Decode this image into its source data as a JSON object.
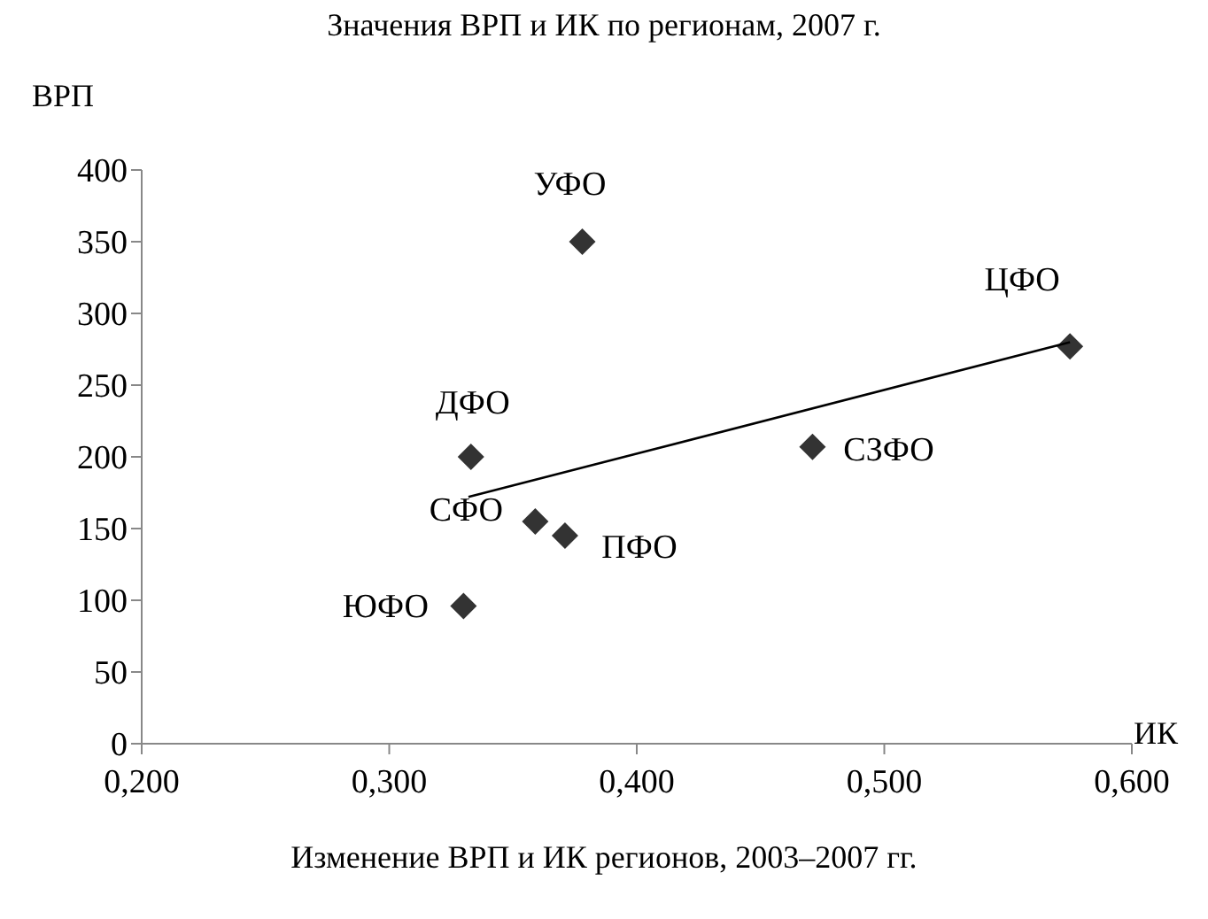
{
  "chart_data": {
    "type": "scatter",
    "title": "Значения ВРП и ИК по регионам, 2007 г.",
    "xlabel": "ИК",
    "ylabel": "ВРП",
    "annotations": [
      {
        "text": "УФО",
        "x": 0.378,
        "y": 350
      },
      {
        "text": "ЦФО",
        "x": 0.575,
        "y": 277
      },
      {
        "text": "СЗФО",
        "x": 0.471,
        "y": 207
      },
      {
        "text": "ДФО",
        "x": 0.333,
        "y": 200
      },
      {
        "text": "СФО",
        "x": 0.359,
        "y": 155
      },
      {
        "text": "ПФО",
        "x": 0.371,
        "y": 145
      },
      {
        "text": "ЮФО",
        "x": 0.33,
        "y": 96
      },
      "Изменение ВРП и ИК регионов, 2003–2007 гг."
    ],
    "series": [
      {
        "color": "#333333",
        "marker": "diamond",
        "x": [
          0.378,
          0.575,
          0.471,
          0.333,
          0.359,
          0.371,
          0.33
        ],
        "values": [
          350,
          277,
          207,
          200,
          155,
          145,
          96
        ]
      },
      {
        "type": "line",
        "color": "#000000",
        "marker": "none",
        "x": [
          0.332,
          0.575
        ],
        "values": [
          172,
          280
        ]
      }
    ],
    "xlim": [
      0.2,
      0.6
    ],
    "xticks": [
      {
        "value": 0.2,
        "label": "0,200"
      },
      {
        "value": 0.3,
        "label": "0,300"
      },
      {
        "value": 0.4,
        "label": "0,400"
      },
      {
        "value": 0.5,
        "label": "0,500"
      },
      {
        "value": 0.6,
        "label": "0,600"
      }
    ],
    "ylim": [
      0,
      400
    ],
    "yticks": [
      0,
      50,
      100,
      150,
      200,
      250,
      300,
      350,
      400
    ],
    "grid": false
  }
}
